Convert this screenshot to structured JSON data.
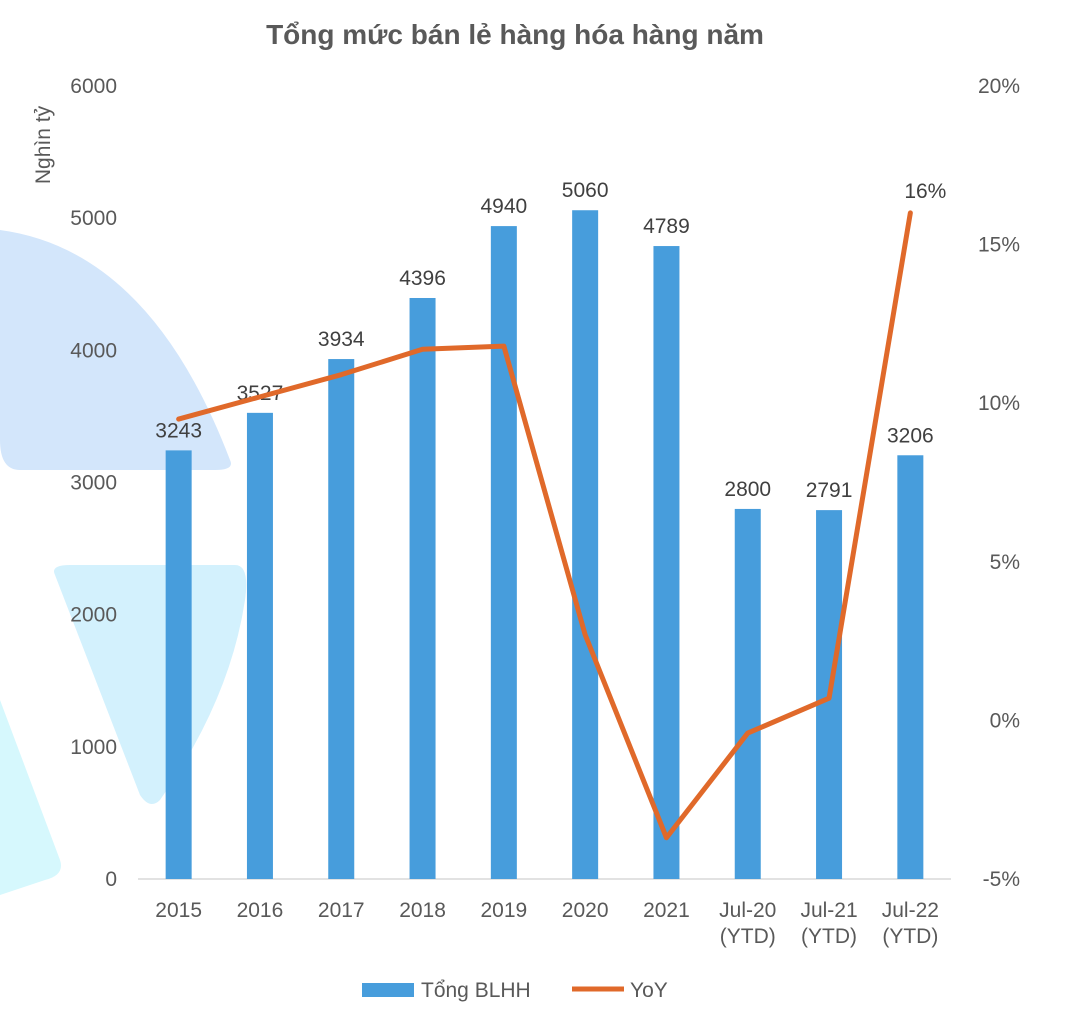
{
  "chart_data": {
    "type": "bar+line",
    "title": "Tổng mức bán lẻ hàng hóa hàng năm",
    "ylabel": "Nghìn tỷ",
    "ylabel_right": "",
    "xlabel": "",
    "categories": [
      [
        "2015"
      ],
      [
        "2016"
      ],
      [
        "2017"
      ],
      [
        "2018"
      ],
      [
        "2019"
      ],
      [
        "2020"
      ],
      [
        "2021"
      ],
      [
        "Jul-20",
        "(YTD)"
      ],
      [
        "Jul-21",
        "(YTD)"
      ],
      [
        "Jul-22",
        "(YTD)"
      ]
    ],
    "ylim": [
      0,
      6000
    ],
    "yticks": [
      0,
      1000,
      2000,
      3000,
      4000,
      5000,
      6000
    ],
    "ylim_right": [
      -5,
      20
    ],
    "yticks_right": [
      "-5%",
      "0%",
      "5%",
      "10%",
      "15%",
      "20%"
    ],
    "yticks_right_values": [
      -5,
      0,
      5,
      10,
      15,
      20
    ],
    "series": [
      {
        "name": "Tổng BLHH",
        "type": "bar",
        "color": "#479DDC",
        "values": [
          3243,
          3527,
          3934,
          4396,
          4940,
          5060,
          4789,
          2800,
          2791,
          3206
        ],
        "labels": [
          "3243",
          "3527",
          "3934",
          "4396",
          "4940",
          "5060",
          "4789",
          "2800",
          "2791",
          "3206"
        ]
      },
      {
        "name": "YoY",
        "type": "line",
        "color": "#E0692A",
        "axis": "right",
        "values": [
          9.5,
          10.2,
          10.9,
          11.7,
          11.8,
          2.7,
          -3.7,
          -0.4,
          0.7,
          16.0
        ],
        "end_label": "16%"
      }
    ],
    "legend": "bottom",
    "grid": false
  }
}
